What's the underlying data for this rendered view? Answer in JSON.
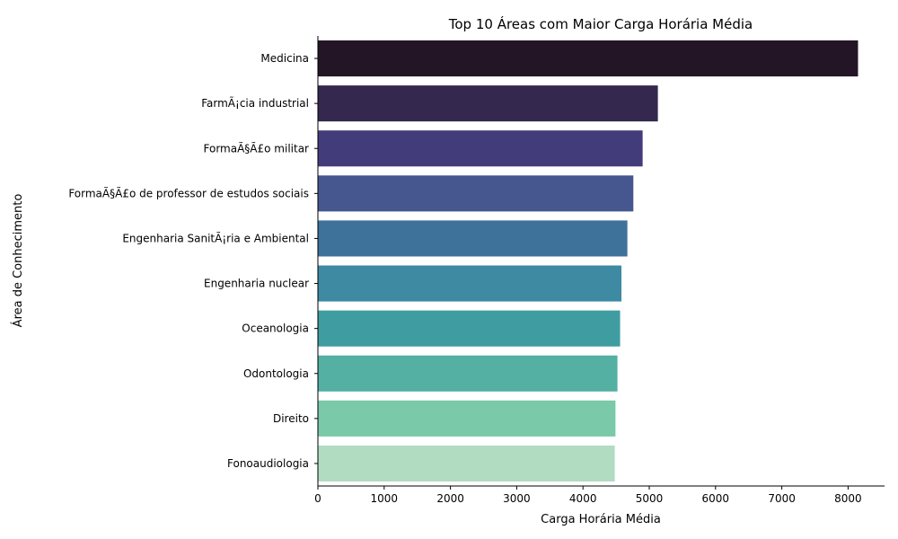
{
  "chart_data": {
    "type": "bar",
    "orientation": "horizontal",
    "title": "Top 10 Áreas com Maior Carga Horária Média",
    "xlabel": "Carga Horária Média",
    "ylabel": "Área de Conhecimento",
    "xlim": [
      0,
      8550
    ],
    "xticks": [
      0,
      1000,
      2000,
      3000,
      4000,
      5000,
      6000,
      7000,
      8000
    ],
    "grid": false,
    "legend": "none",
    "categories": [
      "Medicina",
      "FarmÃ¡cia industrial",
      "FormaÃ§Ã£o militar",
      "FormaÃ§Ã£o de professor de estudos sociais",
      "Engenharia SanitÃ¡ria e Ambiental",
      "Engenharia nuclear",
      "Oceanologia",
      "Odontologia",
      "Direito",
      "Fonoaudiologia"
    ],
    "values": [
      8150,
      5130,
      4900,
      4760,
      4670,
      4580,
      4560,
      4520,
      4490,
      4480
    ],
    "colors": [
      "#231526",
      "#35284f",
      "#433c7a",
      "#46578f",
      "#3f729a",
      "#3d8aa2",
      "#3f9ca1",
      "#53b0a3",
      "#7ac9a8",
      "#b2dcc2"
    ]
  }
}
